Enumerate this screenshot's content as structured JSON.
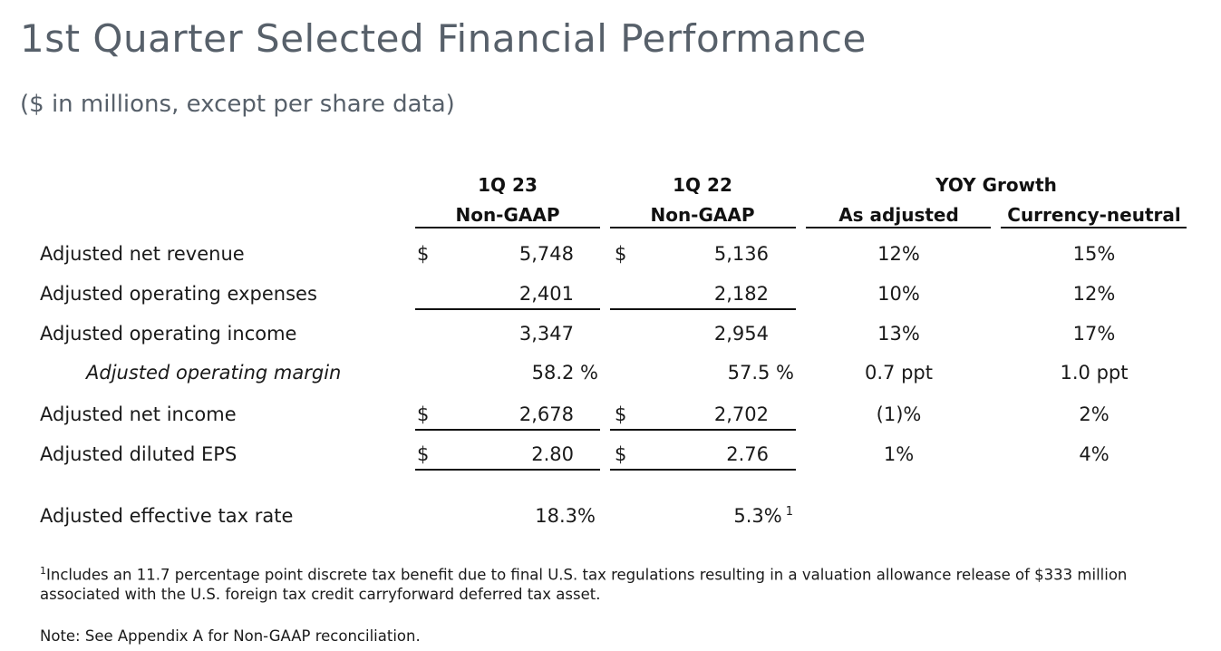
{
  "title": "1st Quarter Selected Financial Performance",
  "subtitle": "($ in millions, except per share data)",
  "columns": {
    "q23_line1": "1Q 23",
    "q23_line2": "Non-GAAP",
    "q22_line1": "1Q 22",
    "q22_line2": "Non-GAAP",
    "yoy": "YOY Growth",
    "as_adjusted": "As adjusted",
    "currency_neutral": "Currency-neutral"
  },
  "dollar_sign": "$",
  "rows": [
    {
      "label": "Adjusted net revenue",
      "q23": "5,748",
      "q22": "5,136",
      "as_adjusted": "12%",
      "currency_neutral": "15%"
    },
    {
      "label": "Adjusted operating expenses",
      "q23": "2,401",
      "q22": "2,182",
      "as_adjusted": "10%",
      "currency_neutral": "12%"
    },
    {
      "label": "Adjusted operating income",
      "q23": "3,347",
      "q22": "2,954",
      "as_adjusted": "13%",
      "currency_neutral": "17%"
    },
    {
      "label": "Adjusted operating margin",
      "q23": "58.2 %",
      "q22": "57.5 %",
      "as_adjusted": "0.7 ppt",
      "currency_neutral": "1.0 ppt"
    },
    {
      "label": "Adjusted net income",
      "q23": "2,678",
      "q22": "2,702",
      "as_adjusted": "(1)%",
      "currency_neutral": "2%"
    },
    {
      "label": "Adjusted diluted EPS",
      "q23": "2.80",
      "q22": "2.76",
      "as_adjusted": "1%",
      "currency_neutral": "4%"
    }
  ],
  "tax_rate": {
    "label": "Adjusted effective tax rate",
    "q23": "18.3%",
    "q22": "5.3%",
    "q22_footnote_mark": "1"
  },
  "footnote": {
    "mark": "1",
    "text": "Includes an 11.7 percentage point discrete tax benefit due to final U.S. tax regulations resulting in a valuation allowance release of $333 million associated with the U.S. foreign tax credit carryforward deferred tax asset."
  },
  "note": "Note: See Appendix A for Non-GAAP reconciliation."
}
